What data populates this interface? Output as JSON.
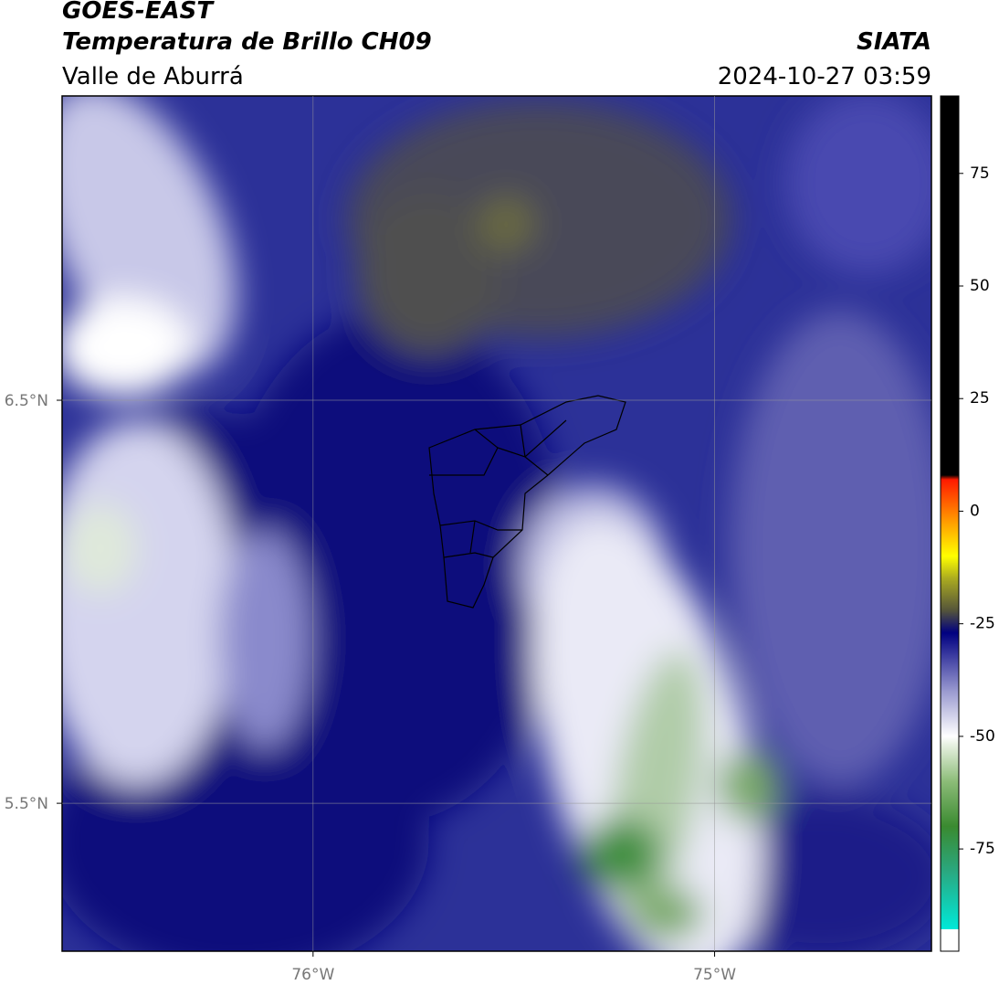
{
  "header": {
    "satellite": "GOES-EAST",
    "product": "Temperatura de Brillo CH09",
    "region": "Valle de Aburrá",
    "source": "SIATA",
    "timestamp": "2024-10-27 03:59"
  },
  "map": {
    "xlim": [
      -76.625,
      -74.46
    ],
    "ylim": [
      5.133,
      7.255
    ],
    "xticks": [
      {
        "value": -76,
        "label": "76°W"
      },
      {
        "value": -75,
        "label": "75°W"
      }
    ],
    "yticks": [
      {
        "value": 5.5,
        "label": "5.5°N"
      },
      {
        "value": 6.5,
        "label": "6.5°N"
      }
    ],
    "grid": true
  },
  "colorbar": {
    "lim": [
      -97.7,
      92.2
    ],
    "ticks": [
      -75,
      -50,
      -25,
      0,
      25,
      50,
      75
    ],
    "colormap": [
      {
        "value": -97.7,
        "color": "#ffffff"
      },
      {
        "value": -92.8,
        "color": "#ffffff"
      },
      {
        "value": -92.8,
        "color": "#00e8d8"
      },
      {
        "value": -80,
        "color": "#2aa880"
      },
      {
        "value": -70,
        "color": "#3a8a30"
      },
      {
        "value": -60,
        "color": "#8cbc78"
      },
      {
        "value": -52,
        "color": "#e6f0e0"
      },
      {
        "value": -50,
        "color": "#ffffff"
      },
      {
        "value": -40,
        "color": "#9a9ad0"
      },
      {
        "value": -32,
        "color": "#3b3ba0"
      },
      {
        "value": -27,
        "color": "#000080"
      },
      {
        "value": -22,
        "color": "#55553a"
      },
      {
        "value": -15,
        "color": "#aaaa20"
      },
      {
        "value": -10,
        "color": "#ffff00"
      },
      {
        "value": -3,
        "color": "#ffa500"
      },
      {
        "value": 7,
        "color": "#ff1a00"
      },
      {
        "value": 8,
        "color": "#000000"
      },
      {
        "value": 92.2,
        "color": "#000000"
      }
    ]
  }
}
